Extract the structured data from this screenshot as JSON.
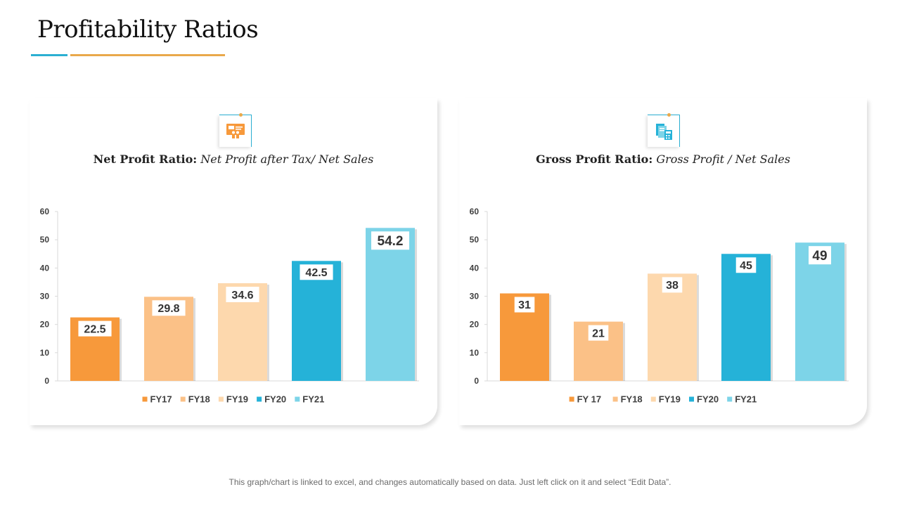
{
  "page": {
    "title": "Profitability Ratios",
    "footer": "This graph/chart is linked to excel, and changes automatically based on data. Just left click on it and select “Edit Data”."
  },
  "panels": [
    {
      "label": "Net Profit Ratio:",
      "formula": "Net Profit after Tax/ Net Sales",
      "icon": "presentation-board-icon"
    },
    {
      "label": "Gross Profit Ratio:",
      "formula": "Gross Profit / Net Sales",
      "icon": "documents-calculator-icon"
    }
  ],
  "colors": {
    "fy17": "#f7993b",
    "fy18": "#fbc187",
    "fy19": "#fdd8ad",
    "fy20": "#25b2d8",
    "fy21": "#7dd4e8",
    "accent_blue": "#2bafd2",
    "accent_orange": "#e9a94b"
  },
  "chart_data": [
    {
      "type": "bar",
      "title": "Net Profit Ratio",
      "categories": [
        "FY17",
        "FY18",
        "FY19",
        "FY20",
        "FY21"
      ],
      "values": [
        22.5,
        29.8,
        34.6,
        42.5,
        54.2
      ],
      "labels": [
        "22.5",
        "29.8",
        "34.6",
        "42.5",
        "54.2"
      ],
      "legend": [
        "FY17",
        "FY18",
        "FY19",
        "FY20",
        "FY21"
      ],
      "colors": [
        "#f7993b",
        "#fbc187",
        "#fdd8ad",
        "#25b2d8",
        "#7dd4e8"
      ],
      "ylim": [
        0,
        60
      ],
      "yticks": [
        0,
        10,
        20,
        30,
        40,
        50,
        60
      ],
      "legend_position": "bottom",
      "grid": false
    },
    {
      "type": "bar",
      "title": "Gross Profit Ratio",
      "categories": [
        "FY 17",
        "FY18",
        "FY19",
        "FY20",
        "FY21"
      ],
      "values": [
        31,
        21,
        38,
        45,
        49
      ],
      "labels": [
        "31",
        "21",
        "38",
        "45",
        "49"
      ],
      "legend": [
        "FY 17",
        "FY18",
        "FY19",
        "FY20",
        "FY21"
      ],
      "colors": [
        "#f7993b",
        "#fbc187",
        "#fdd8ad",
        "#25b2d8",
        "#7dd4e8"
      ],
      "ylim": [
        0,
        60
      ],
      "yticks": [
        0,
        10,
        20,
        30,
        40,
        50,
        60
      ],
      "legend_position": "bottom",
      "grid": false
    }
  ]
}
